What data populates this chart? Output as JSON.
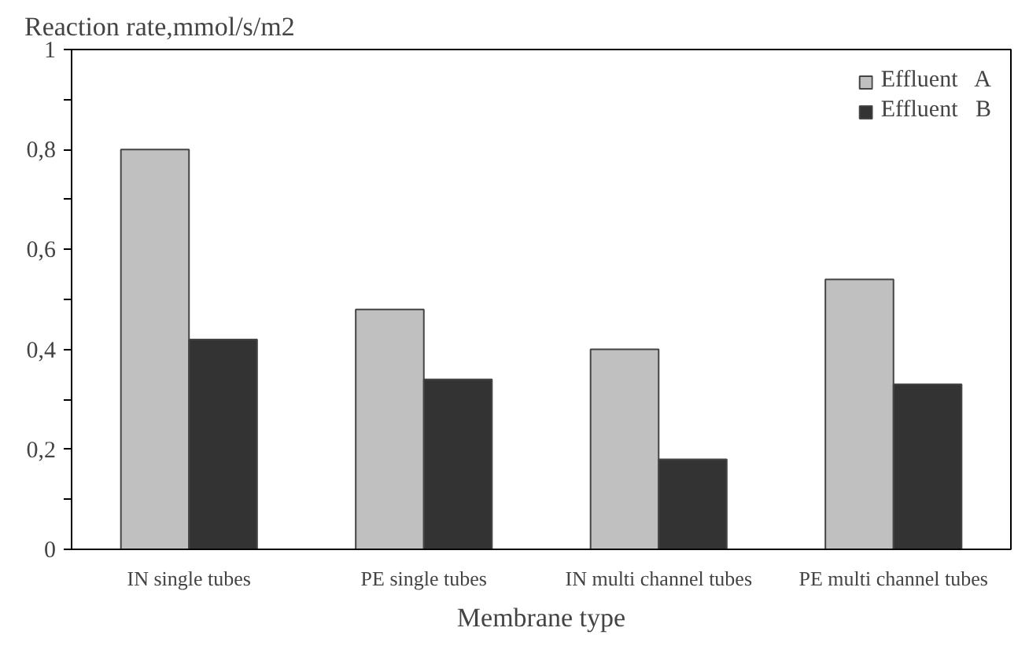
{
  "chart_data": {
    "type": "bar",
    "ylabel": "Reaction rate,mmol/s/m2",
    "xlabel": "Membrane type",
    "categories": [
      "IN single tubes",
      "PE single tubes",
      "IN multi channel tubes",
      "PE multi channel tubes"
    ],
    "series": [
      {
        "name": "Effluent   A",
        "color": "#c0c0c0",
        "values": [
          0.8,
          0.48,
          0.4,
          0.54
        ]
      },
      {
        "name": "Effluent   B",
        "color": "#333333",
        "values": [
          0.42,
          0.34,
          0.18,
          0.33
        ]
      }
    ],
    "ylim": [
      0,
      1
    ],
    "yticks": [
      {
        "value": 0,
        "label": "0"
      },
      {
        "value": 0.1,
        "label": null
      },
      {
        "value": 0.2,
        "label": "0,2"
      },
      {
        "value": 0.3,
        "label": null
      },
      {
        "value": 0.4,
        "label": "0,4"
      },
      {
        "value": 0.5,
        "label": null
      },
      {
        "value": 0.6,
        "label": "0,6"
      },
      {
        "value": 0.7,
        "label": null
      },
      {
        "value": 0.8,
        "label": "0,8"
      },
      {
        "value": 0.9,
        "label": null
      },
      {
        "value": 1,
        "label": "1"
      }
    ],
    "grid": false,
    "legend": "top right"
  }
}
